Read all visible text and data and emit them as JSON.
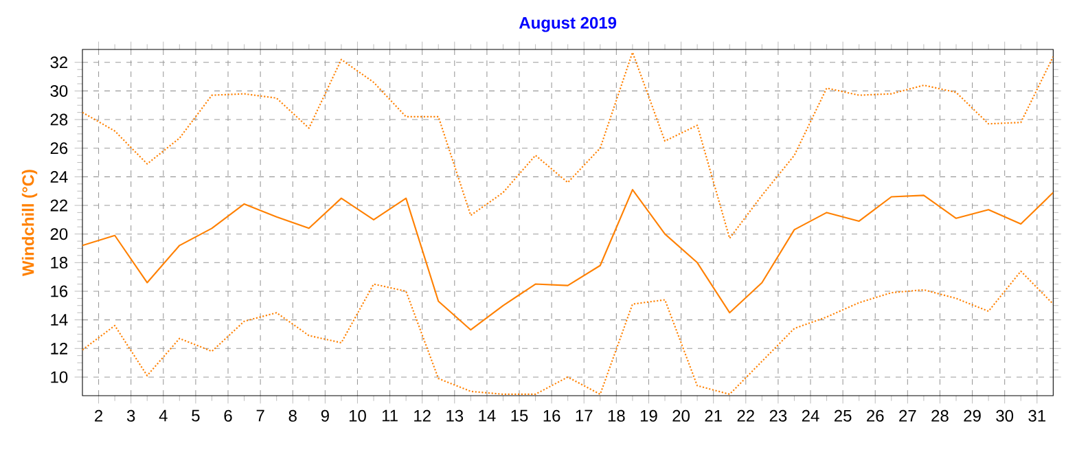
{
  "chart_data": {
    "type": "line",
    "title": "August 2019",
    "ylabel": "Windchill  (°C)",
    "x": [
      1.5,
      2.5,
      3.5,
      4.5,
      5.5,
      6.5,
      7.5,
      8.5,
      9.5,
      10.5,
      11.5,
      12.5,
      13.5,
      14.5,
      15.5,
      16.5,
      17.5,
      18.5,
      19.5,
      20.5,
      21.5,
      22.5,
      23.5,
      24.5,
      25.5,
      26.5,
      27.5,
      28.5,
      29.5,
      30.5,
      31.5
    ],
    "series": [
      {
        "color": "#ff8000",
        "line_style": "dotted",
        "values": [
          28.5,
          27.2,
          24.9,
          26.7,
          29.7,
          29.8,
          29.5,
          27.4,
          32.2,
          30.6,
          28.2,
          28.2,
          21.3,
          22.9,
          25.5,
          23.6,
          26.0,
          32.7,
          26.5,
          27.6,
          19.7,
          22.7,
          25.5,
          30.2,
          29.7,
          29.8,
          30.4,
          29.9,
          27.7,
          27.8,
          32.4
        ]
      },
      {
        "color": "#ff8000",
        "line_style": "solid",
        "values": [
          19.2,
          19.9,
          16.6,
          19.2,
          20.4,
          22.1,
          21.2,
          20.4,
          22.5,
          21.0,
          22.5,
          15.3,
          13.3,
          15.0,
          16.5,
          16.4,
          17.8,
          23.1,
          20.0,
          18.0,
          14.5,
          16.6,
          20.3,
          21.5,
          20.9,
          22.6,
          22.7,
          21.1,
          21.7,
          20.7,
          22.9
        ]
      },
      {
        "color": "#ff8000",
        "line_style": "dotted",
        "values": [
          11.9,
          13.6,
          10.1,
          12.7,
          11.8,
          13.9,
          14.5,
          12.9,
          12.4,
          16.5,
          16.0,
          9.9,
          9.0,
          8.8,
          8.8,
          10.0,
          8.8,
          15.1,
          15.4,
          9.4,
          8.8,
          11.1,
          13.4,
          14.2,
          15.2,
          15.9,
          16.1,
          15.5,
          14.6,
          17.4,
          15.1
        ]
      }
    ],
    "xlim": [
      1.5,
      31.5
    ],
    "ylim": [
      8.7,
      32.9
    ],
    "xticks": [
      2,
      3,
      4,
      5,
      6,
      7,
      8,
      9,
      10,
      11,
      12,
      13,
      14,
      15,
      16,
      17,
      18,
      19,
      20,
      21,
      22,
      23,
      24,
      25,
      26,
      27,
      28,
      29,
      30,
      31
    ],
    "yticks": [
      10,
      12,
      14,
      16,
      18,
      20,
      22,
      24,
      26,
      28,
      30,
      32
    ],
    "grid": true,
    "marker": "none"
  }
}
